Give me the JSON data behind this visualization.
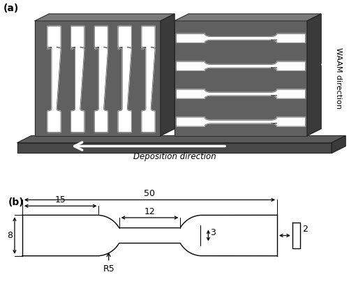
{
  "fig_width": 5.0,
  "fig_height": 4.3,
  "dpi": 100,
  "bg_color": "#ffffff",
  "label_a": "(a)",
  "label_b": "(b)",
  "dark_color": "#4a4a4a",
  "mid_color": "#606060",
  "light_color": "#7a7a7a",
  "deposition_text": "Deposition direction",
  "waam_text": "WAAM direction",
  "dim_50": "50",
  "dim_15": "15",
  "dim_12": "12",
  "dim_8": "8",
  "dim_3": "3",
  "dim_r5": "R5",
  "dim_2": "2"
}
